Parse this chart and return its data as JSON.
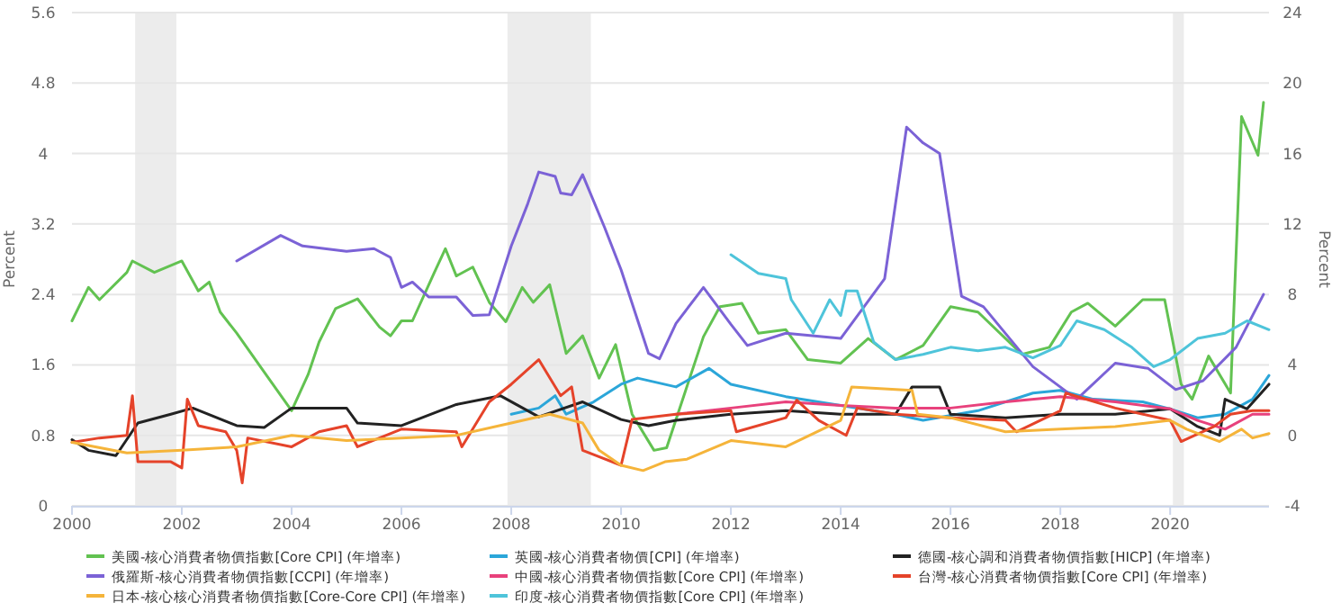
{
  "chart_data": {
    "type": "line",
    "ylabel": "Percent",
    "y2label": "Percent",
    "xlim": [
      2000,
      2021.8
    ],
    "xticks": [
      2000,
      2002,
      2004,
      2006,
      2008,
      2010,
      2012,
      2014,
      2016,
      2018,
      2020
    ],
    "ylim": [
      0,
      5.6
    ],
    "yticks": [
      0,
      0.8,
      1.6,
      2.4,
      3.2,
      4,
      4.8,
      5.6
    ],
    "y2lim": [
      -4,
      24
    ],
    "y2ticks": [
      -4,
      0,
      4,
      8,
      12,
      16,
      20,
      24
    ],
    "grid": "y",
    "legend": "bottom",
    "marker": "none",
    "line_style": "solid",
    "bands": [
      {
        "axis": "x",
        "from": 2001.15,
        "to": 2001.9,
        "color": "#ececec"
      },
      {
        "axis": "x",
        "from": 2007.93,
        "to": 2009.45,
        "color": "#ececec"
      },
      {
        "axis": "x",
        "from": 2020.05,
        "to": 2020.25,
        "color": "#ececec"
      }
    ],
    "series": [
      {
        "name": "美國-核心消費者物價指數[Core CPI] (年增率)",
        "color": "#62c251",
        "x": [
          2000.0,
          2000.3,
          2000.5,
          2001.0,
          2001.1,
          2001.5,
          2002.0,
          2002.3,
          2002.5,
          2002.7,
          2003.0,
          2003.5,
          2004.0,
          2004.3,
          2004.5,
          2004.8,
          2005.2,
          2005.6,
          2005.8,
          2006.0,
          2006.2,
          2006.6,
          2006.8,
          2007.0,
          2007.3,
          2007.6,
          2007.9,
          2008.2,
          2008.4,
          2008.7,
          2009.0,
          2009.3,
          2009.6,
          2009.9,
          2010.2,
          2010.6,
          2010.83,
          2011.5,
          2011.8,
          2012.2,
          2012.5,
          2013.0,
          2013.4,
          2014.0,
          2014.5,
          2015.0,
          2015.5,
          2016.0,
          2016.5,
          2017.3,
          2017.8,
          2018.2,
          2018.5,
          2019.0,
          2019.5,
          2019.9,
          2020.2,
          2020.4,
          2020.7,
          2021.1,
          2021.3,
          2021.6,
          2021.7
        ],
        "values": [
          2.1,
          2.48,
          2.34,
          2.65,
          2.78,
          2.65,
          2.78,
          2.44,
          2.54,
          2.2,
          1.96,
          1.52,
          1.08,
          1.49,
          1.86,
          2.24,
          2.35,
          2.03,
          1.93,
          2.1,
          2.1,
          2.65,
          2.92,
          2.61,
          2.71,
          2.31,
          2.09,
          2.48,
          2.31,
          2.51,
          1.73,
          1.93,
          1.45,
          1.83,
          1.04,
          0.63,
          0.66,
          1.92,
          2.26,
          2.3,
          1.96,
          2.0,
          1.66,
          1.62,
          1.9,
          1.66,
          1.82,
          2.26,
          2.2,
          1.72,
          1.8,
          2.2,
          2.3,
          2.04,
          2.34,
          2.34,
          1.38,
          1.21,
          1.7,
          1.28,
          4.42,
          3.98,
          4.58
        ]
      },
      {
        "name": "英國-核心消費者物價[CPI] (年增率)",
        "color": "#2ba6d9",
        "axis": "y2",
        "x": [
          2008.0,
          2008.5,
          2008.8,
          2009.0,
          2009.5,
          2010.0,
          2010.3,
          2011.0,
          2011.6,
          2012.0,
          2013.0,
          2014.0,
          2015.0,
          2015.5,
          2016.5,
          2017.5,
          2018.0,
          2018.6,
          2019.5,
          2020.0,
          2020.5,
          2021.0,
          2021.5,
          2021.8
        ],
        "values": [
          1.2,
          1.55,
          2.25,
          1.2,
          1.9,
          2.9,
          3.25,
          2.75,
          3.8,
          2.9,
          2.2,
          1.7,
          1.2,
          0.85,
          1.4,
          2.4,
          2.55,
          2.05,
          1.9,
          1.5,
          1.0,
          1.2,
          2.05,
          3.4
        ]
      },
      {
        "name": "德國-核心調和消費者物價指數[HICP] (年增率)",
        "color": "#222222",
        "axis": "y2",
        "x": [
          2000.0,
          2000.3,
          2000.8,
          2001.2,
          2001.8,
          2002.2,
          2003.0,
          2003.5,
          2004.0,
          2005.0,
          2005.2,
          2006.0,
          2007.0,
          2007.8,
          2008.5,
          2009.3,
          2010.0,
          2010.5,
          2011.0,
          2012.0,
          2013.0,
          2014.0,
          2015.0,
          2015.3,
          2015.8,
          2016.0,
          2017.0,
          2018.0,
          2019.0,
          2020.0,
          2020.5,
          2020.9,
          2021.0,
          2021.4,
          2021.8
        ],
        "values": [
          -0.25,
          -0.85,
          -1.15,
          0.7,
          1.2,
          1.55,
          0.55,
          0.45,
          1.55,
          1.55,
          0.7,
          0.55,
          1.75,
          2.25,
          1.05,
          1.9,
          0.9,
          0.55,
          0.85,
          1.2,
          1.4,
          1.2,
          1.2,
          2.75,
          2.75,
          1.2,
          1.0,
          1.2,
          1.2,
          1.5,
          0.5,
          0.0,
          2.05,
          1.5,
          2.9
        ]
      },
      {
        "name": "俄羅斯-核心消費者物價指數[CCPI] (年增率)",
        "color": "#7b62d6",
        "axis": "y2",
        "x": [
          2003.0,
          2003.8,
          2004.2,
          2005.0,
          2005.5,
          2005.8,
          2006.0,
          2006.2,
          2006.5,
          2007.0,
          2007.3,
          2007.6,
          2008.0,
          2008.3,
          2008.5,
          2008.8,
          2008.9,
          2009.1,
          2009.3,
          2009.7,
          2010.0,
          2010.5,
          2010.7,
          2011.0,
          2011.5,
          2012.0,
          2012.3,
          2013.0,
          2014.0,
          2014.8,
          2015.2,
          2015.5,
          2015.8,
          2016.2,
          2016.6,
          2017.5,
          2018.3,
          2019.0,
          2019.6,
          2020.1,
          2020.6,
          2021.2,
          2021.7
        ],
        "values": [
          9.9,
          11.35,
          10.75,
          10.45,
          10.6,
          10.1,
          8.4,
          8.7,
          7.85,
          7.85,
          6.8,
          6.85,
          10.75,
          13.15,
          14.95,
          14.7,
          13.75,
          13.65,
          14.8,
          11.8,
          9.4,
          4.65,
          4.35,
          6.35,
          8.4,
          6.3,
          5.1,
          5.8,
          5.5,
          8.9,
          17.5,
          16.6,
          16.0,
          7.9,
          7.3,
          3.9,
          2.05,
          4.1,
          3.8,
          2.6,
          3.1,
          5.0,
          8.0
        ]
      },
      {
        "name": "中國-核心消費者物價指數[Core CPI] (年增率)",
        "color": "#e8417c",
        "axis": "y2",
        "x": [
          2011.0,
          2012.0,
          2013.0,
          2014.0,
          2015.0,
          2016.0,
          2017.0,
          2018.0,
          2019.0,
          2020.0,
          2020.5,
          2021.0,
          2021.5,
          2021.8
        ],
        "values": [
          1.2,
          1.55,
          1.9,
          1.7,
          1.55,
          1.55,
          1.9,
          2.2,
          1.9,
          1.5,
          0.85,
          0.35,
          1.2,
          1.2
        ]
      },
      {
        "name": "台灣-核心消費者物價指數[Core CPI] (年增率)",
        "color": "#e5432a",
        "axis": "y2",
        "x": [
          2000.0,
          2000.5,
          2001.0,
          2001.1,
          2001.2,
          2001.8,
          2002.0,
          2002.1,
          2002.3,
          2002.8,
          2003.0,
          2003.1,
          2003.2,
          2004.0,
          2004.5,
          2005.0,
          2005.2,
          2006.0,
          2007.0,
          2007.1,
          2007.6,
          2008.0,
          2008.5,
          2008.9,
          2009.1,
          2009.3,
          2010.0,
          2010.2,
          2011.0,
          2012.0,
          2012.1,
          2013.0,
          2013.2,
          2013.6,
          2014.1,
          2014.3,
          2015.0,
          2016.0,
          2017.0,
          2017.2,
          2018.0,
          2018.1,
          2019.0,
          2020.0,
          2020.2,
          2020.8,
          2021.1,
          2021.5,
          2021.8
        ],
        "values": [
          -0.4,
          -0.15,
          0.0,
          2.25,
          -1.5,
          -1.5,
          -1.85,
          2.05,
          0.55,
          0.2,
          -0.85,
          -2.7,
          -0.15,
          -0.65,
          0.2,
          0.55,
          -0.65,
          0.35,
          0.2,
          -0.65,
          1.9,
          2.9,
          4.3,
          2.25,
          2.75,
          -0.85,
          -1.7,
          0.9,
          1.2,
          1.4,
          0.2,
          1.0,
          2.0,
          0.85,
          0.0,
          1.55,
          1.2,
          1.0,
          0.85,
          0.2,
          1.4,
          2.4,
          1.55,
          0.85,
          -0.35,
          0.5,
          1.2,
          1.4,
          1.4
        ]
      },
      {
        "name": "日本-核心核心消費者物價指數[Core-Core CPI] (年增率)",
        "color": "#f5b43a",
        "axis": "y2",
        "x": [
          2000.0,
          2001.0,
          2002.0,
          2003.0,
          2004.0,
          2005.0,
          2006.0,
          2007.0,
          2008.0,
          2008.7,
          2009.3,
          2009.6,
          2010.0,
          2010.4,
          2010.8,
          2011.2,
          2012.0,
          2013.0,
          2014.0,
          2014.2,
          2015.3,
          2015.4,
          2016.0,
          2017.0,
          2018.0,
          2019.0,
          2020.0,
          2020.3,
          2020.9,
          2021.3,
          2021.5,
          2021.8
        ],
        "values": [
          -0.4,
          -1.0,
          -0.85,
          -0.65,
          0.0,
          -0.3,
          -0.15,
          0.0,
          0.7,
          1.2,
          0.7,
          -0.85,
          -1.7,
          -2.0,
          -1.5,
          -1.35,
          -0.3,
          -0.65,
          0.85,
          2.75,
          2.55,
          1.2,
          1.0,
          0.2,
          0.35,
          0.5,
          0.85,
          0.35,
          -0.35,
          0.35,
          -0.15,
          0.1
        ]
      },
      {
        "name": "印度-核心消費者物價指數[Core CPI] (年增率)",
        "color": "#4ec4da",
        "axis": "y2",
        "x": [
          2012.0,
          2012.5,
          2013.0,
          2013.1,
          2013.5,
          2013.8,
          2014.0,
          2014.1,
          2014.3,
          2014.6,
          2015.0,
          2015.5,
          2016.0,
          2016.5,
          2017.0,
          2017.5,
          2018.0,
          2018.3,
          2018.8,
          2019.3,
          2019.7,
          2020.0,
          2020.5,
          2021.0,
          2021.4,
          2021.8
        ],
        "values": [
          10.25,
          9.2,
          8.9,
          7.7,
          5.8,
          7.7,
          6.8,
          8.2,
          8.2,
          5.3,
          4.3,
          4.6,
          5.0,
          4.8,
          5.0,
          4.4,
          5.1,
          6.5,
          6.0,
          5.0,
          3.9,
          4.3,
          5.5,
          5.8,
          6.5,
          6.0
        ]
      }
    ]
  }
}
